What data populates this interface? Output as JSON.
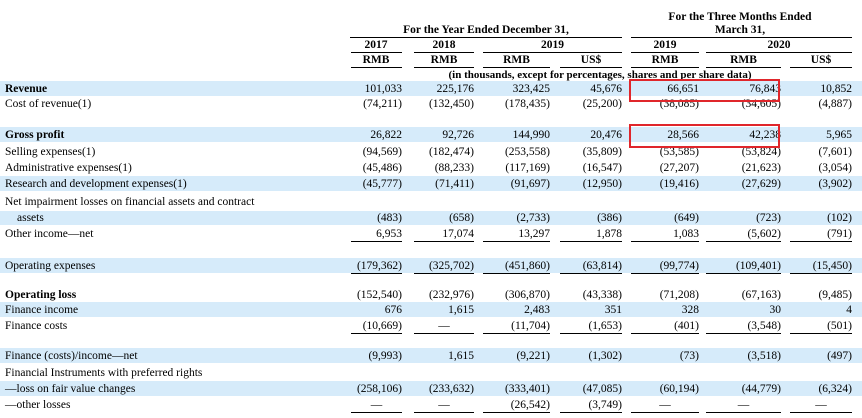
{
  "header": {
    "year_group": "For the Year Ended December 31,",
    "three_months_group_line1": "For the Three Months Ended",
    "three_months_group_line2": "March 31,",
    "col_2017": "2017",
    "col_2018": "2018",
    "col_2019": "2019",
    "col_2019q": "2019",
    "col_2020": "2020",
    "cur_rmb": "RMB",
    "cur_usd": "US$",
    "units_note": "(in thousands, except for percentages, shares and per share data)"
  },
  "rows": [
    {
      "label": "Revenue",
      "bold": true,
      "values": [
        "101,033",
        "225,176",
        "323,425",
        "45,676",
        "66,651",
        "76,843",
        "10,852"
      ]
    },
    {
      "label": "Cost of revenue(1)",
      "values": [
        "(74,211)",
        "(132,450)",
        "(178,435)",
        "(25,200)",
        "(38,085)",
        "(34,605)",
        "(4,887)"
      ]
    },
    {
      "label": "Gross profit",
      "bold": true,
      "values": [
        "26,822",
        "92,726",
        "144,990",
        "20,476",
        "28,566",
        "42,238",
        "5,965"
      ]
    },
    {
      "label": "Selling expenses(1)",
      "values": [
        "(94,569)",
        "(182,474)",
        "(253,558)",
        "(35,809)",
        "(53,585)",
        "(53,824)",
        "(7,601)"
      ]
    },
    {
      "label": "Administrative expenses(1)",
      "values": [
        "(45,486)",
        "(88,233)",
        "(117,169)",
        "(16,547)",
        "(27,207)",
        "(21,623)",
        "(3,054)"
      ]
    },
    {
      "label": "Research and development expenses(1)",
      "values": [
        "(45,777)",
        "(71,411)",
        "(91,697)",
        "(12,950)",
        "(19,416)",
        "(27,629)",
        "(3,902)"
      ]
    },
    {
      "label": "Net impairment losses on financial assets and contract",
      "label2": "assets",
      "values": [
        "(483)",
        "(658)",
        "(2,733)",
        "(386)",
        "(649)",
        "(723)",
        "(102)"
      ]
    },
    {
      "label": "Other income—net",
      "values": [
        "6,953",
        "17,074",
        "13,297",
        "1,878",
        "1,083",
        "(5,602)",
        "(791)"
      ]
    },
    {
      "label": "Operating expenses",
      "values": [
        "(179,362)",
        "(325,702)",
        "(451,860)",
        "(63,814)",
        "(99,774)",
        "(109,401)",
        "(15,450)"
      ]
    },
    {
      "label": "Operating loss",
      "bold": true,
      "values": [
        "(152,540)",
        "(232,976)",
        "(306,870)",
        "(43,338)",
        "(71,208)",
        "(67,163)",
        "(9,485)"
      ]
    },
    {
      "label": "Finance income",
      "values": [
        "676",
        "1,615",
        "2,483",
        "351",
        "328",
        "30",
        "4"
      ]
    },
    {
      "label": "Finance costs",
      "values": [
        "(10,669)",
        "—",
        "(11,704)",
        "(1,653)",
        "(401)",
        "(3,548)",
        "(501)"
      ]
    },
    {
      "label": "Finance (costs)/income—net",
      "values": [
        "(9,993)",
        "1,615",
        "(9,221)",
        "(1,302)",
        "(73)",
        "(3,518)",
        "(497)"
      ]
    },
    {
      "label": "Financial Instruments with preferred rights",
      "values": []
    },
    {
      "label": "—loss on fair value changes",
      "values": [
        "(258,106)",
        "(233,632)",
        "(333,401)",
        "(47,085)",
        "(60,194)",
        "(44,779)",
        "(6,324)"
      ]
    },
    {
      "label": "—other losses",
      "values": [
        "—",
        "—",
        "(26,542)",
        "(3,749)",
        "—",
        "—",
        "—"
      ]
    }
  ]
}
